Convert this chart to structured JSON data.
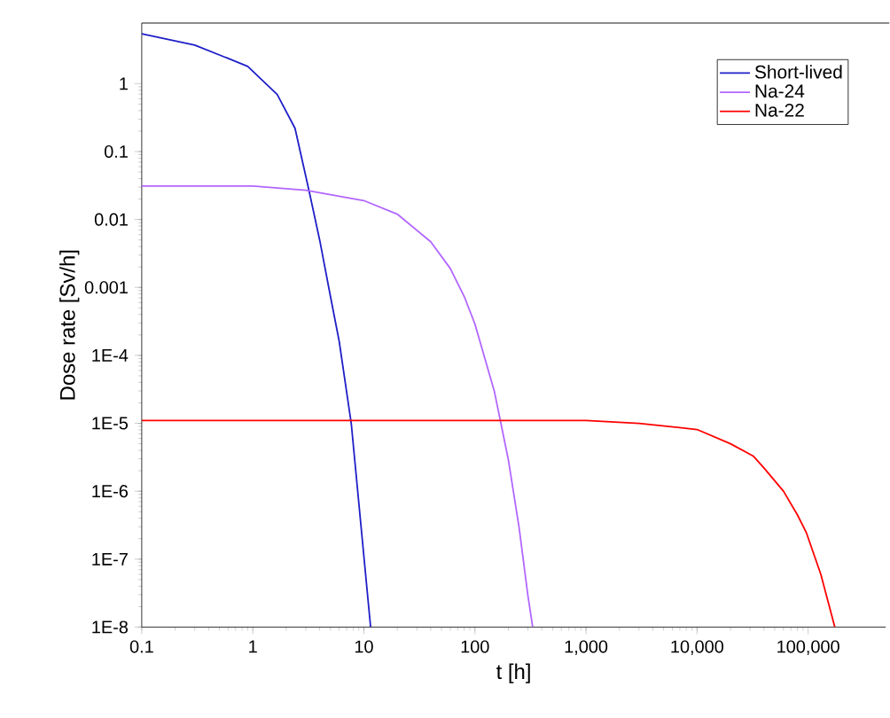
{
  "chart_data": {
    "type": "line",
    "xlabel": "t [h]",
    "ylabel": "Dose rate [Sv/h]",
    "log": "xy",
    "grid": false,
    "legend": "top right",
    "line_style": "solid",
    "marker": "none",
    "xlim": [
      0.1,
      500000
    ],
    "ylim": [
      1e-08,
      7.8
    ],
    "xticks": [
      0.1,
      1,
      10,
      100,
      {
        "value": 1000,
        "label": "1,000"
      },
      {
        "value": 10000,
        "label": "10,000"
      },
      {
        "value": 100000,
        "label": "100,000"
      }
    ],
    "yticks": [
      {
        "value": 1e-08,
        "label": "1E-8"
      },
      {
        "value": 1e-07,
        "label": "1E-7"
      },
      {
        "value": 1e-06,
        "label": "1E-6"
      },
      {
        "value": 1e-05,
        "label": "1E-5"
      },
      {
        "value": 0.0001,
        "label": "1E-4"
      },
      0.001,
      0.01,
      0.1,
      1
    ],
    "series": [
      {
        "name": "Short-lived",
        "color": "#1f1fc8",
        "x": [
          0.1,
          0.3,
          0.9,
          1.66,
          2.4,
          3.2,
          4,
          5,
          6,
          7.7,
          11.5
        ],
        "values": [
          5.4,
          3.7,
          1.8,
          0.69,
          0.22,
          0.027,
          0.005,
          0.00074,
          0.00016,
          1e-05,
          1e-08
        ]
      },
      {
        "name": "Na-24",
        "color": "#b266ff",
        "x": [
          0.1,
          1,
          3,
          10,
          20,
          40,
          60,
          80,
          100,
          150,
          200,
          250,
          300,
          331
        ],
        "values": [
          0.031,
          0.031,
          0.027,
          0.019,
          0.012,
          0.0047,
          0.0019,
          0.00074,
          0.00029,
          2.9e-05,
          2.9e-06,
          2.9e-07,
          2.9e-08,
          1e-08
        ]
      },
      {
        "name": "Na-22",
        "color": "#ff0000",
        "x": [
          0.1,
          1000,
          3000,
          10000,
          20000,
          32000,
          40000,
          60000,
          80000,
          96000,
          130000,
          174000
        ],
        "values": [
          1.1e-05,
          1.1e-05,
          1e-05,
          8.1e-06,
          5e-06,
          3.3e-06,
          2.2e-06,
          1e-06,
          4.5e-07,
          2.5e-07,
          6e-08,
          1e-08
        ]
      }
    ]
  }
}
